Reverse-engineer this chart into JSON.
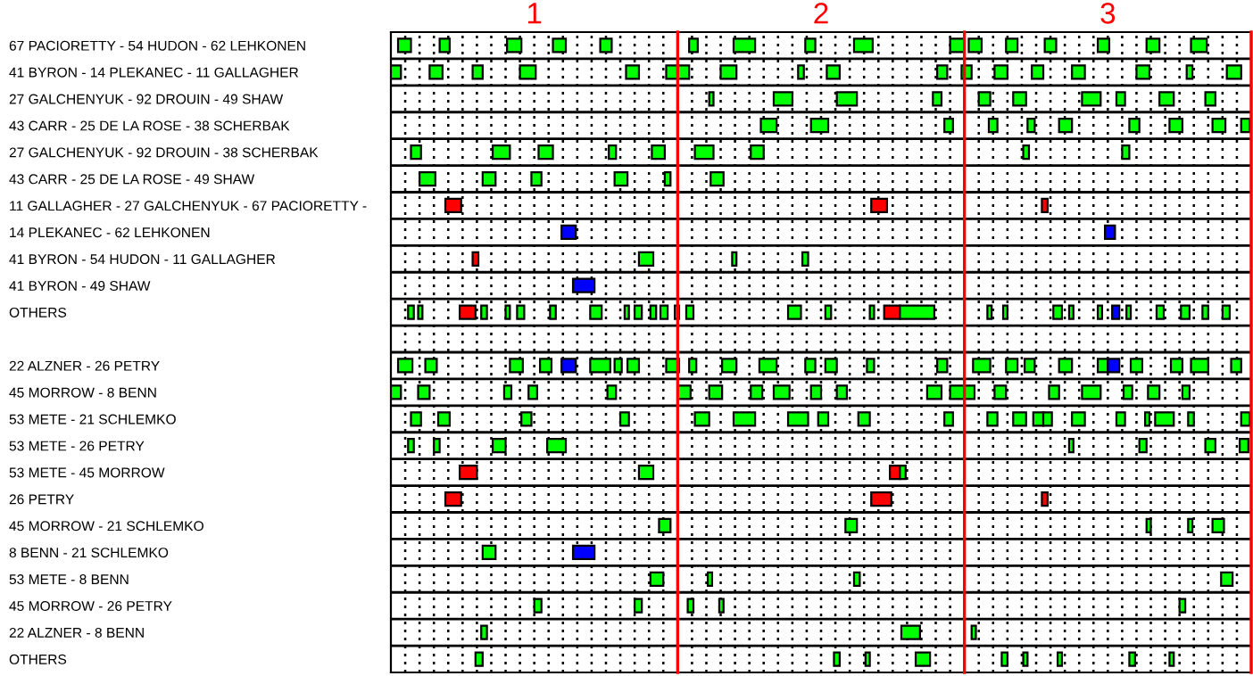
{
  "chart_data": {
    "type": "bar",
    "orientation": "horizontal",
    "grid": true,
    "xlim": [
      0.5,
      3.5
    ],
    "xticks": [
      {
        "value": 0.55,
        "label": null
      },
      {
        "value": 0.6,
        "label": null
      },
      {
        "value": 0.65,
        "label": null
      },
      {
        "value": 0.7,
        "label": null
      },
      {
        "value": 0.75,
        "label": null
      },
      {
        "value": 0.8,
        "label": null
      },
      {
        "value": 0.85,
        "label": null
      },
      {
        "value": 0.9,
        "label": null
      },
      {
        "value": 0.95,
        "label": null
      },
      1,
      {
        "value": 1.05,
        "label": null
      },
      {
        "value": 1.1,
        "label": null
      },
      {
        "value": 1.15,
        "label": null
      },
      {
        "value": 1.2,
        "label": null
      },
      {
        "value": 1.25,
        "label": null
      },
      {
        "value": 1.3,
        "label": null
      },
      {
        "value": 1.35,
        "label": null
      },
      {
        "value": 1.4,
        "label": null
      },
      {
        "value": 1.45,
        "label": null
      },
      {
        "value": 1.55,
        "label": null
      },
      {
        "value": 1.6,
        "label": null
      },
      {
        "value": 1.65,
        "label": null
      },
      {
        "value": 1.7,
        "label": null
      },
      {
        "value": 1.75,
        "label": null
      },
      {
        "value": 1.8,
        "label": null
      },
      {
        "value": 1.85,
        "label": null
      },
      {
        "value": 1.9,
        "label": null
      },
      {
        "value": 1.95,
        "label": null
      },
      2,
      {
        "value": 2.05,
        "label": null
      },
      {
        "value": 2.1,
        "label": null
      },
      {
        "value": 2.15,
        "label": null
      },
      {
        "value": 2.2,
        "label": null
      },
      {
        "value": 2.25,
        "label": null
      },
      {
        "value": 2.3,
        "label": null
      },
      {
        "value": 2.35,
        "label": null
      },
      {
        "value": 2.4,
        "label": null
      },
      {
        "value": 2.45,
        "label": null
      },
      {
        "value": 2.55,
        "label": null
      },
      {
        "value": 2.6,
        "label": null
      },
      {
        "value": 2.65,
        "label": null
      },
      {
        "value": 2.7,
        "label": null
      },
      {
        "value": 2.75,
        "label": null
      },
      {
        "value": 2.8,
        "label": null
      },
      {
        "value": 2.85,
        "label": null
      },
      {
        "value": 2.9,
        "label": null
      },
      {
        "value": 2.95,
        "label": null
      },
      3,
      {
        "value": 3.05,
        "label": null
      },
      {
        "value": 3.1,
        "label": null
      },
      {
        "value": 3.15,
        "label": null
      },
      {
        "value": 3.2,
        "label": null
      },
      {
        "value": 3.25,
        "label": null
      },
      {
        "value": 3.3,
        "label": null
      },
      {
        "value": 3.35,
        "label": null
      },
      {
        "value": 3.4,
        "label": null
      },
      {
        "value": 3.45,
        "label": null
      }
    ],
    "ref_lines": [
      {
        "axis": "x",
        "value": 1.5,
        "color": "#ff0000"
      },
      {
        "axis": "x",
        "value": 2.5,
        "color": "#ff0000"
      },
      {
        "axis": "x",
        "value": 3.5,
        "color": "#ff0000"
      }
    ],
    "categories": [
      "67 PACIORETTY - 54 HUDON - 62 LEHKONEN",
      "41 BYRON - 14 PLEKANEC - 11 GALLAGHER",
      "27 GALCHENYUK - 92 DROUIN - 49 SHAW",
      "43 CARR - 25 DE LA ROSE - 38 SCHERBAK",
      "27 GALCHENYUK - 92 DROUIN - 38 SCHERBAK",
      "43 CARR - 25 DE LA ROSE - 49 SHAW",
      "11 GALLAGHER - 27 GALCHENYUK - 67 PACIORETTY -",
      "14 PLEKANEC - 62 LEHKONEN",
      "41 BYRON - 54 HUDON - 11 GALLAGHER",
      "41 BYRON - 49 SHAW",
      "OTHERS",
      null,
      "22 ALZNER - 26 PETRY",
      "45 MORROW - 8 BENN",
      "53 METE - 21 SCHLEMKO",
      "53 METE - 26 PETRY",
      "53 METE - 45 MORROW",
      "26 PETRY",
      "45 MORROW - 21 SCHLEMKO",
      "8 BENN - 21 SCHLEMKO",
      "53 METE - 8 BENN",
      "45 MORROW - 26 PETRY",
      "22 ALZNER - 8 BENN",
      "OTHERS"
    ],
    "series": [
      {
        "colors": [
          "#00ff00",
          "#00ff00",
          "#00ff00",
          "#00ff00",
          "#00ff00",
          "#00ff00",
          "#ff0000",
          "#0000ff",
          "#ff0000",
          "#0000ff",
          "#00ff00",
          null,
          "#00ff00",
          "#00ff00",
          "#00ff00",
          "#00ff00",
          "#ff0000",
          "#ff0000",
          "#00ff00",
          "#00ff00",
          "#00ff00",
          "#00ff00",
          "#00ff00",
          "#00ff00"
        ],
        "base": [
          0.525,
          0.5,
          1.61,
          1.79,
          0.57,
          0.6,
          0.69,
          1.095,
          0.785,
          1.135,
          0.56,
          null,
          0.525,
          0.5,
          0.57,
          0.56,
          0.74,
          0.69,
          1.435,
          0.82,
          1.405,
          1.0,
          0.815,
          0.795
        ],
        "values": [
          0.045,
          0.035,
          0.015,
          0.055,
          0.035,
          0.055,
          0.055,
          0.05,
          0.02,
          0.075,
          0.02,
          null,
          0.05,
          0.035,
          0.035,
          0.02,
          0.06,
          0.055,
          0.04,
          0.045,
          0.045,
          0.025,
          0.02,
          0.025
        ]
      },
      {
        "colors": [
          "#00ff00",
          "#00ff00",
          "#00ff00",
          "#00ff00",
          "#00ff00",
          "#00ff00",
          "#ff0000",
          "#0000ff",
          "#00ff00",
          null,
          "#00ff00",
          null,
          "#00ff00",
          "#00ff00",
          "#00ff00",
          "#00ff00",
          "#00ff00",
          "#ff0000",
          "#00ff00",
          "#0000ff",
          "#00ff00",
          "#00ff00",
          "#00ff00",
          "#00ff00"
        ],
        "base": [
          0.67,
          0.635,
          1.835,
          1.965,
          0.855,
          0.82,
          2.175,
          2.99,
          1.365,
          null,
          0.595,
          null,
          0.62,
          0.595,
          0.665,
          0.65,
          1.365,
          2.175,
          2.085,
          1.135,
          1.605,
          1.35,
          2.28,
          2.045
        ],
        "values": [
          0.035,
          0.045,
          0.065,
          0.06,
          0.06,
          0.045,
          0.055,
          0.035,
          0.05,
          null,
          0.015,
          null,
          0.04,
          0.04,
          0.04,
          0.02,
          0.05,
          0.07,
          0.04,
          0.075,
          0.015,
          0.025,
          0.065,
          0.02
        ]
      },
      {
        "colors": [
          "#00ff00",
          "#00ff00",
          "#00ff00",
          "#00ff00",
          "#00ff00",
          "#00ff00",
          "#ff0000",
          null,
          "#00ff00",
          null,
          "#ff0000",
          null,
          "#00ff00",
          "#00ff00",
          "#00ff00",
          "#00ff00",
          "#ff0000",
          "#ff0000",
          "#00ff00",
          null,
          "#00ff00",
          "#00ff00",
          "#00ff00",
          "#00ff00"
        ],
        "base": [
          0.905,
          0.785,
          2.055,
          2.43,
          1.015,
          0.99,
          2.77,
          null,
          1.69,
          null,
          0.74,
          null,
          0.915,
          0.895,
          0.955,
          0.855,
          2.24,
          2.77,
          3.135,
          null,
          2.115,
          1.535,
          2.525,
          2.155
        ],
        "values": [
          0.05,
          0.035,
          0.07,
          0.03,
          0.05,
          0.035,
          0.02,
          null,
          0.015,
          null,
          0.055,
          null,
          0.045,
          0.025,
          0.035,
          0.045,
          0.035,
          0.02,
          0.015,
          null,
          0.02,
          0.02,
          0.015,
          0.015
        ]
      },
      {
        "color": "#00ff00",
        "base": [
          1.065,
          0.95,
          2.39,
          2.585,
          1.26,
          1.28,
          null,
          null,
          1.935,
          null,
          0.815,
          null,
          1.02,
          0.98,
          1.3,
          1.045,
          2.275,
          null,
          3.28,
          null,
          3.395,
          1.645,
          null,
          2.33
        ],
        "values": [
          0.045,
          0.055,
          0.03,
          0.03,
          0.025,
          0.045,
          null,
          null,
          0.02,
          null,
          0.02,
          null,
          0.04,
          0.03,
          0.03,
          0.065,
          0.02,
          null,
          0.015,
          null,
          0.04,
          0.015,
          null,
          0.05
        ]
      },
      {
        "colors": [
          "#00ff00",
          "#00ff00",
          "#00ff00",
          "#00ff00",
          "#00ff00",
          "#00ff00",
          null,
          null,
          null,
          null,
          "#00ff00",
          null,
          "#0000ff",
          "#00ff00",
          "#00ff00",
          "#00ff00",
          null,
          null,
          "#00ff00",
          null,
          null,
          "#00ff00",
          null,
          "#00ff00"
        ],
        "base": [
          1.23,
          1.32,
          2.55,
          2.72,
          1.41,
          1.455,
          null,
          null,
          null,
          null,
          0.9,
          null,
          1.095,
          1.255,
          1.56,
          2.865,
          null,
          null,
          3.365,
          null,
          null,
          3.25,
          null,
          2.63
        ],
        "values": [
          0.04,
          0.045,
          0.04,
          0.025,
          0.045,
          0.02,
          null,
          null,
          null,
          null,
          0.015,
          null,
          0.05,
          0.03,
          0.05,
          0.015,
          null,
          null,
          0.04,
          null,
          null,
          0.02,
          null,
          0.02
        ]
      },
      {
        "color": "#00ff00",
        "base": [
          1.54,
          1.46,
          2.67,
          2.83,
          1.56,
          1.615,
          null,
          null,
          null,
          null,
          0.94,
          null,
          1.195,
          1.5,
          1.695,
          3.11,
          null,
          null,
          null,
          null,
          null,
          null,
          null,
          2.705
        ],
        "values": [
          0.03,
          0.04,
          0.045,
          0.045,
          0.065,
          0.045,
          null,
          null,
          null,
          null,
          0.025,
          null,
          0.07,
          0.045,
          0.075,
          0.025,
          null,
          null,
          null,
          null,
          null,
          null,
          null,
          0.015
        ]
      },
      {
        "color": "#00ff00",
        "base": [
          1.695,
          1.5,
          2.91,
          3.075,
          1.755,
          null,
          null,
          null,
          null,
          null,
          1.055,
          null,
          1.28,
          1.61,
          1.885,
          3.34,
          null,
          null,
          null,
          null,
          null,
          null,
          null,
          2.825
        ],
        "values": [
          0.075,
          0.04,
          0.065,
          0.035,
          0.045,
          null,
          null,
          null,
          null,
          null,
          0.02,
          null,
          0.025,
          0.045,
          0.07,
          0.035,
          null,
          null,
          null,
          null,
          null,
          null,
          null,
          0.015
        ]
      },
      {
        "color": "#00ff00",
        "base": [
          1.945,
          1.65,
          3.03,
          3.215,
          2.705,
          null,
          null,
          null,
          null,
          null,
          1.195,
          null,
          1.325,
          1.755,
          1.99,
          3.46,
          null,
          null,
          null,
          null,
          null,
          null,
          null,
          3.075
        ],
        "values": [
          0.035,
          0.055,
          0.03,
          0.045,
          0.02,
          null,
          null,
          null,
          null,
          null,
          0.04,
          null,
          0.04,
          0.04,
          0.035,
          0.03,
          null,
          null,
          null,
          null,
          null,
          null,
          null,
          0.02
        ]
      },
      {
        "color": "#00ff00",
        "base": [
          2.115,
          1.92,
          3.18,
          3.365,
          3.05,
          null,
          null,
          null,
          null,
          null,
          1.315,
          null,
          1.46,
          1.835,
          2.13,
          null,
          null,
          null,
          null,
          null,
          null,
          null,
          null,
          3.215
        ],
        "values": [
          0.065,
          0.02,
          0.05,
          0.045,
          0.025,
          null,
          null,
          null,
          null,
          null,
          0.015,
          null,
          0.045,
          0.055,
          0.04,
          null,
          null,
          null,
          null,
          null,
          null,
          null,
          null,
          0.015
        ]
      },
      {
        "color": "#00ff00",
        "base": [
          2.45,
          2.02,
          3.34,
          3.465,
          null,
          null,
          null,
          null,
          null,
          null,
          1.35,
          null,
          1.54,
          1.965,
          2.43,
          null,
          null,
          null,
          null,
          null,
          null,
          null,
          null,
          null
        ],
        "values": [
          0.05,
          0.045,
          0.035,
          0.03,
          null,
          null,
          null,
          null,
          null,
          null,
          0.025,
          null,
          0.025,
          0.035,
          0.03,
          null,
          null,
          null,
          null,
          null,
          null,
          null,
          null,
          null
        ]
      },
      {
        "color": "#00ff00",
        "base": [
          2.515,
          2.405,
          null,
          null,
          null,
          null,
          null,
          null,
          null,
          null,
          1.405,
          null,
          1.655,
          2.055,
          2.58,
          null,
          null,
          null,
          null,
          null,
          null,
          null,
          null,
          null
        ],
        "values": [
          0.045,
          0.035,
          null,
          null,
          null,
          null,
          null,
          null,
          null,
          null,
          0.02,
          null,
          0.05,
          0.035,
          0.035,
          null,
          null,
          null,
          null,
          null,
          null,
          null,
          null,
          null
        ]
      },
      {
        "color": "#00ff00",
        "base": [
          2.645,
          2.49,
          null,
          null,
          null,
          null,
          null,
          null,
          null,
          null,
          1.44,
          null,
          1.785,
          2.37,
          2.67,
          null,
          null,
          null,
          null,
          null,
          null,
          null,
          null,
          null
        ],
        "values": [
          0.04,
          0.035,
          null,
          null,
          null,
          null,
          null,
          null,
          null,
          null,
          0.025,
          null,
          0.06,
          0.05,
          0.045,
          null,
          null,
          null,
          null,
          null,
          null,
          null,
          null,
          null
        ]
      },
      {
        "color": "#00ff00",
        "base": [
          2.78,
          2.605,
          null,
          null,
          null,
          null,
          null,
          null,
          null,
          null,
          1.49,
          null,
          1.945,
          2.45,
          2.74,
          null,
          null,
          null,
          null,
          null,
          null,
          null,
          null,
          null
        ],
        "values": [
          0.04,
          0.045,
          null,
          null,
          null,
          null,
          null,
          null,
          null,
          null,
          0.015,
          null,
          0.035,
          0.085,
          0.035,
          null,
          null,
          null,
          null,
          null,
          null,
          null,
          null,
          null
        ]
      },
      {
        "color": "#00ff00",
        "base": [
          2.965,
          2.735,
          null,
          null,
          null,
          null,
          null,
          null,
          null,
          null,
          1.53,
          null,
          2.015,
          2.605,
          2.775,
          null,
          null,
          null,
          null,
          null,
          null,
          null,
          null,
          null
        ],
        "values": [
          0.04,
          0.04,
          null,
          null,
          null,
          null,
          null,
          null,
          null,
          null,
          0.025,
          null,
          0.04,
          0.04,
          0.03,
          null,
          null,
          null,
          null,
          null,
          null,
          null,
          null,
          null
        ]
      },
      {
        "color": "#00ff00",
        "base": [
          3.135,
          2.875,
          null,
          null,
          null,
          null,
          null,
          null,
          null,
          null,
          1.885,
          null,
          2.16,
          2.795,
          2.875,
          null,
          null,
          null,
          null,
          null,
          null,
          null,
          null,
          null
        ],
        "values": [
          0.045,
          0.045,
          null,
          null,
          null,
          null,
          null,
          null,
          null,
          null,
          0.045,
          null,
          0.025,
          0.035,
          0.045,
          null,
          null,
          null,
          null,
          null,
          null,
          null,
          null,
          null
        ]
      },
      {
        "color": "#00ff00",
        "base": [
          3.29,
          3.1,
          null,
          null,
          null,
          null,
          null,
          null,
          null,
          null,
          2.015,
          null,
          2.405,
          2.91,
          3.03,
          null,
          null,
          null,
          null,
          null,
          null,
          null,
          null,
          null
        ],
        "values": [
          0.055,
          0.045,
          null,
          null,
          null,
          null,
          null,
          null,
          null,
          null,
          0.02,
          null,
          0.035,
          0.065,
          0.03,
          null,
          null,
          null,
          null,
          null,
          null,
          null,
          null,
          null
        ]
      },
      {
        "color": "#00ff00",
        "base": [
          null,
          3.275,
          null,
          null,
          null,
          null,
          null,
          null,
          null,
          null,
          2.17,
          null,
          2.53,
          3.055,
          3.13,
          null,
          null,
          null,
          null,
          null,
          null,
          null,
          null,
          null
        ],
        "values": [
          null,
          0.02,
          null,
          null,
          null,
          null,
          null,
          null,
          null,
          null,
          0.015,
          null,
          0.06,
          0.03,
          0.015,
          null,
          null,
          null,
          null,
          null,
          null,
          null,
          null,
          null
        ]
      },
      {
        "colors": [
          null,
          "#00ff00",
          null,
          null,
          null,
          null,
          null,
          null,
          null,
          null,
          "#ff0000",
          null,
          "#00ff00",
          "#00ff00",
          "#00ff00",
          null,
          null,
          null,
          null,
          null,
          null,
          null,
          null,
          null
        ],
        "base": [
          null,
          3.415,
          null,
          null,
          null,
          null,
          null,
          null,
          null,
          null,
          2.22,
          null,
          2.645,
          3.14,
          3.165,
          null,
          null,
          null,
          null,
          null,
          null,
          null,
          null,
          null
        ],
        "values": [
          null,
          0.05,
          null,
          null,
          null,
          null,
          null,
          null,
          null,
          null,
          0.055,
          null,
          0.04,
          0.04,
          0.065,
          null,
          null,
          null,
          null,
          null,
          null,
          null,
          null,
          null
        ]
      },
      {
        "color": "#00ff00",
        "base": [
          null,
          null,
          null,
          null,
          null,
          null,
          null,
          null,
          null,
          null,
          2.275,
          null,
          2.71,
          3.26,
          3.28,
          null,
          null,
          null,
          null,
          null,
          null,
          null,
          null,
          null
        ],
        "values": [
          null,
          null,
          null,
          null,
          null,
          null,
          null,
          null,
          null,
          null,
          0.12,
          null,
          0.035,
          0.025,
          0.02,
          null,
          null,
          null,
          null,
          null,
          null,
          null,
          null,
          null
        ]
      },
      {
        "color": "#00ff00",
        "base": [
          null,
          null,
          null,
          null,
          null,
          null,
          null,
          null,
          null,
          null,
          2.58,
          null,
          2.83,
          null,
          3.465,
          null,
          null,
          null,
          null,
          null,
          null,
          null,
          null,
          null
        ],
        "values": [
          null,
          null,
          null,
          null,
          null,
          null,
          null,
          null,
          null,
          null,
          0.015,
          null,
          0.045,
          null,
          0.03,
          null,
          null,
          null,
          null,
          null,
          null,
          null,
          null,
          null
        ]
      },
      {
        "color": "#00ff00",
        "base": [
          null,
          null,
          null,
          null,
          null,
          null,
          null,
          null,
          null,
          null,
          2.635,
          null,
          2.965,
          null,
          null,
          null,
          null,
          null,
          null,
          null,
          null,
          null,
          null,
          null
        ],
        "values": [
          null,
          null,
          null,
          null,
          null,
          null,
          null,
          null,
          null,
          null,
          0.015,
          null,
          0.035,
          null,
          null,
          null,
          null,
          null,
          null,
          null,
          null,
          null,
          null,
          null
        ]
      },
      {
        "colors": [
          null,
          null,
          null,
          null,
          null,
          null,
          null,
          null,
          null,
          null,
          "#00ff00",
          null,
          "#0000ff",
          null,
          null,
          null,
          null,
          null,
          null,
          null,
          null,
          null,
          null,
          null
        ],
        "base": [
          null,
          null,
          null,
          null,
          null,
          null,
          null,
          null,
          null,
          null,
          2.81,
          null,
          3.0,
          null,
          null,
          null,
          null,
          null,
          null,
          null,
          null,
          null,
          null,
          null
        ],
        "values": [
          null,
          null,
          null,
          null,
          null,
          null,
          null,
          null,
          null,
          null,
          0.03,
          null,
          0.04,
          null,
          null,
          null,
          null,
          null,
          null,
          null,
          null,
          null,
          null,
          null
        ]
      },
      {
        "color": "#00ff00",
        "base": [
          null,
          null,
          null,
          null,
          null,
          null,
          null,
          null,
          null,
          null,
          2.865,
          null,
          3.08,
          null,
          null,
          null,
          null,
          null,
          null,
          null,
          null,
          null,
          null,
          null
        ],
        "values": [
          null,
          null,
          null,
          null,
          null,
          null,
          null,
          null,
          null,
          null,
          0.015,
          null,
          0.04,
          null,
          null,
          null,
          null,
          null,
          null,
          null,
          null,
          null,
          null,
          null
        ]
      },
      {
        "color": "#00ff00",
        "base": [
          null,
          null,
          null,
          null,
          null,
          null,
          null,
          null,
          null,
          null,
          2.965,
          null,
          3.22,
          null,
          null,
          null,
          null,
          null,
          null,
          null,
          null,
          null,
          null,
          null
        ],
        "values": [
          null,
          null,
          null,
          null,
          null,
          null,
          null,
          null,
          null,
          null,
          0.015,
          null,
          0.04,
          null,
          null,
          null,
          null,
          null,
          null,
          null,
          null,
          null,
          null,
          null
        ]
      },
      {
        "colors": [
          null,
          null,
          null,
          null,
          null,
          null,
          null,
          null,
          null,
          null,
          "#0000ff",
          null,
          "#00ff00",
          null,
          null,
          null,
          null,
          null,
          null,
          null,
          null,
          null,
          null,
          null
        ],
        "base": [
          null,
          null,
          null,
          null,
          null,
          null,
          null,
          null,
          null,
          null,
          3.015,
          null,
          3.29,
          null,
          null,
          null,
          null,
          null,
          null,
          null,
          null,
          null,
          null,
          null
        ],
        "values": [
          null,
          null,
          null,
          null,
          null,
          null,
          null,
          null,
          null,
          null,
          0.025,
          null,
          0.06,
          null,
          null,
          null,
          null,
          null,
          null,
          null,
          null,
          null,
          null,
          null
        ]
      },
      {
        "color": "#00ff00",
        "base": [
          null,
          null,
          null,
          null,
          null,
          null,
          null,
          null,
          null,
          null,
          3.065,
          null,
          3.43,
          null,
          null,
          null,
          null,
          null,
          null,
          null,
          null,
          null,
          null,
          null
        ],
        "values": [
          null,
          null,
          null,
          null,
          null,
          null,
          null,
          null,
          null,
          null,
          0.015,
          null,
          0.035,
          null,
          null,
          null,
          null,
          null,
          null,
          null,
          null,
          null,
          null,
          null
        ]
      },
      {
        "color": "#00ff00",
        "base": [
          null,
          null,
          null,
          null,
          null,
          null,
          null,
          null,
          null,
          null,
          3.17,
          null,
          null,
          null,
          null,
          null,
          null,
          null,
          null,
          null,
          null,
          null,
          null,
          null
        ],
        "values": [
          null,
          null,
          null,
          null,
          null,
          null,
          null,
          null,
          null,
          null,
          0.025,
          null,
          null,
          null,
          null,
          null,
          null,
          null,
          null,
          null,
          null,
          null,
          null,
          null
        ]
      },
      {
        "color": "#00ff00",
        "base": [
          null,
          null,
          null,
          null,
          null,
          null,
          null,
          null,
          null,
          null,
          3.255,
          null,
          null,
          null,
          null,
          null,
          null,
          null,
          null,
          null,
          null,
          null,
          null,
          null
        ],
        "values": [
          null,
          null,
          null,
          null,
          null,
          null,
          null,
          null,
          null,
          null,
          0.03,
          null,
          null,
          null,
          null,
          null,
          null,
          null,
          null,
          null,
          null,
          null,
          null,
          null
        ]
      },
      {
        "color": "#00ff00",
        "base": [
          null,
          null,
          null,
          null,
          null,
          null,
          null,
          null,
          null,
          null,
          3.33,
          null,
          null,
          null,
          null,
          null,
          null,
          null,
          null,
          null,
          null,
          null,
          null,
          null
        ],
        "values": [
          null,
          null,
          null,
          null,
          null,
          null,
          null,
          null,
          null,
          null,
          0.02,
          null,
          null,
          null,
          null,
          null,
          null,
          null,
          null,
          null,
          null,
          null,
          null,
          null
        ]
      },
      {
        "color": "#00ff00",
        "base": [
          null,
          null,
          null,
          null,
          null,
          null,
          null,
          null,
          null,
          null,
          3.4,
          null,
          null,
          null,
          null,
          null,
          null,
          null,
          null,
          null,
          null,
          null,
          null,
          null
        ],
        "values": [
          null,
          null,
          null,
          null,
          null,
          null,
          null,
          null,
          null,
          null,
          0.025,
          null,
          null,
          null,
          null,
          null,
          null,
          null,
          null,
          null,
          null,
          null,
          null,
          null
        ]
      }
    ]
  }
}
